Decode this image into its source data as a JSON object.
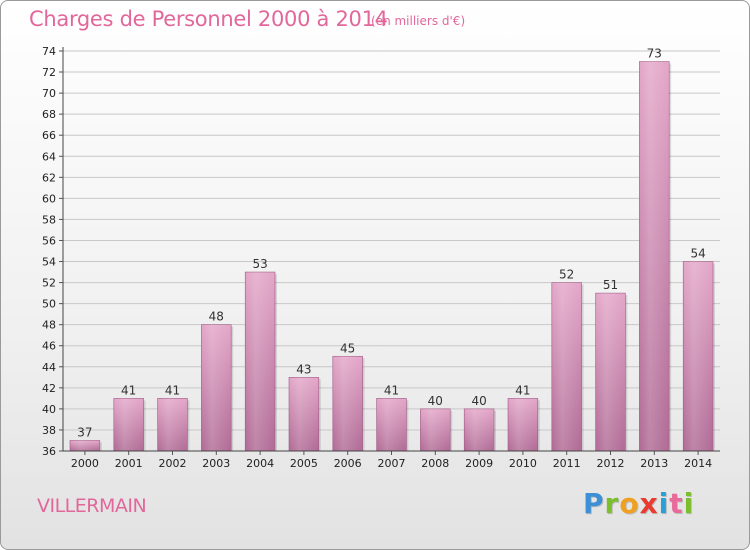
{
  "header": {
    "title": "Charges de Personnel 2000 à 2014",
    "subtitle": "(en milliers d'€)"
  },
  "footer": {
    "commune": "VILLERMAIN",
    "logo": [
      "P",
      "r",
      "o",
      "x",
      "i",
      "t",
      "i"
    ],
    "logo_colors": [
      "#3d8fd6",
      "#7bbf2a",
      "#f0a020",
      "#e83a2e",
      "#2aa0d8",
      "#e86a9a",
      "#7bbf2a"
    ]
  },
  "chart_data": {
    "type": "bar",
    "title": "Charges de Personnel 2000 à 2014",
    "subtitle": "(en milliers d'€)",
    "categories": [
      "2000",
      "2001",
      "2002",
      "2003",
      "2004",
      "2005",
      "2006",
      "2007",
      "2008",
      "2009",
      "2010",
      "2011",
      "2012",
      "2013",
      "2014"
    ],
    "values": [
      37,
      41,
      41,
      48,
      53,
      43,
      45,
      41,
      40,
      40,
      41,
      52,
      51,
      73,
      54
    ],
    "ylim": [
      36,
      74
    ],
    "yticks": [
      36,
      38,
      40,
      42,
      44,
      46,
      48,
      50,
      52,
      54,
      56,
      58,
      60,
      62,
      64,
      66,
      68,
      70,
      72,
      74
    ],
    "grid": true,
    "bar_color": "#d98cb3",
    "xlabel": "",
    "ylabel": ""
  }
}
